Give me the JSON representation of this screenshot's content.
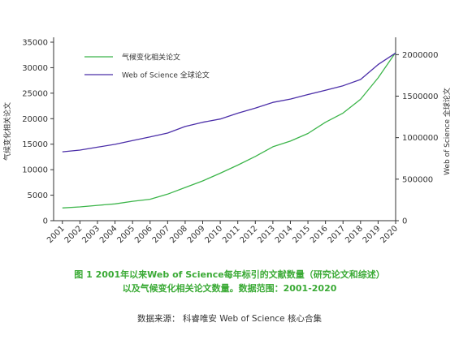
{
  "chart_data": {
    "type": "line",
    "categories": [
      "2001",
      "2002",
      "2003",
      "2004",
      "2005",
      "2006",
      "2007",
      "2008",
      "2009",
      "2010",
      "2011",
      "2012",
      "2013",
      "2014",
      "2015",
      "2016",
      "2017",
      "2018",
      "2019",
      "2020"
    ],
    "series": [
      {
        "name": "气候变化相关论文",
        "axis": "left",
        "color": "#3cb54a",
        "values": [
          2500,
          2700,
          3000,
          3300,
          3800,
          4200,
          5200,
          6500,
          7800,
          9300,
          10900,
          12600,
          14500,
          15600,
          17100,
          19300,
          21100,
          23800,
          28000,
          33000
        ]
      },
      {
        "name": "Web of Science 全球论文",
        "axis": "right",
        "color": "#4b2ea8",
        "values": [
          830000,
          850000,
          885000,
          920000,
          965000,
          1010000,
          1055000,
          1135000,
          1185000,
          1225000,
          1295000,
          1355000,
          1425000,
          1465000,
          1520000,
          1570000,
          1625000,
          1700000,
          1880000,
          2020000
        ]
      }
    ],
    "y_left": {
      "label": "气候变化相关论文",
      "ylim": [
        0,
        35000
      ],
      "ticks": [
        "0",
        "5000",
        "10000",
        "15000",
        "20000",
        "25000",
        "30000",
        "35000"
      ]
    },
    "y_right": {
      "label": "Web of Science 全球论文",
      "ylim": [
        0,
        2150000
      ],
      "ticks": [
        "0",
        "500000",
        "1000000",
        "1500000",
        "2000000"
      ]
    },
    "legend": "top-left",
    "grid": false
  },
  "caption": {
    "line1": "图 1 2001年以来Web of Science每年标引的文献数量（研究论文和综述）",
    "line2": "以及气候变化相关论文数量。数据范围：2001-2020"
  },
  "source": "数据来源：  科睿唯安 Web of Science 核心合集"
}
